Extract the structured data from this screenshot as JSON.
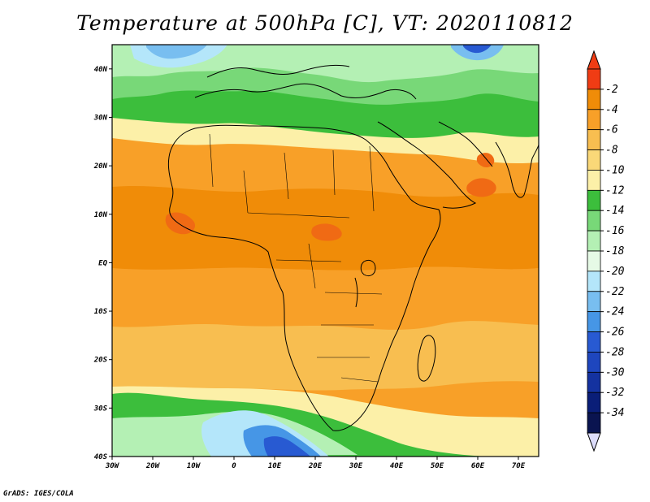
{
  "title": "Temperature at 500hPa [C], VT: 2020110812",
  "credit": "GrADS: IGES/COLA",
  "map": {
    "lon_range": [
      -30,
      75
    ],
    "lat_range": [
      -40,
      45
    ],
    "lat_ticks": [
      {
        "value": 40,
        "label": "40N"
      },
      {
        "value": 30,
        "label": "30N"
      },
      {
        "value": 20,
        "label": "20N"
      },
      {
        "value": 10,
        "label": "10N"
      },
      {
        "value": 0,
        "label": "EQ"
      },
      {
        "value": -10,
        "label": "10S"
      },
      {
        "value": -20,
        "label": "20S"
      },
      {
        "value": -30,
        "label": "30S"
      },
      {
        "value": -40,
        "label": "40S"
      }
    ],
    "lon_ticks": [
      {
        "value": -30,
        "label": "30W"
      },
      {
        "value": -20,
        "label": "20W"
      },
      {
        "value": -10,
        "label": "10W"
      },
      {
        "value": 0,
        "label": "0"
      },
      {
        "value": 10,
        "label": "10E"
      },
      {
        "value": 20,
        "label": "20E"
      },
      {
        "value": 30,
        "label": "30E"
      },
      {
        "value": 40,
        "label": "40E"
      },
      {
        "value": 50,
        "label": "50E"
      },
      {
        "value": 60,
        "label": "60E"
      },
      {
        "value": 70,
        "label": "70E"
      }
    ],
    "colors": {
      "t_m4": "#f08c08",
      "t_m6": "#f8a028",
      "t_m8": "#f8be50",
      "t_m10": "#fad878",
      "t_m12": "#fcf0a8",
      "t_m14": "#3cbe3c",
      "t_m16": "#78d878",
      "t_m18": "#b4f0b4",
      "t_m20": "#e6fae6",
      "t_m22": "#b4e6fa",
      "t_m24": "#78bef0",
      "t_m26": "#4696e6",
      "t_m28": "#285ad2",
      "ocean_hot": "#f06a14"
    }
  },
  "colorbar": {
    "levels": [
      "-2",
      "-4",
      "-6",
      "-8",
      "-10",
      "-12",
      "-14",
      "-16",
      "-18",
      "-20",
      "-22",
      "-24",
      "-26",
      "-28",
      "-30",
      "-32",
      "-34"
    ],
    "colors": [
      "#f03c14",
      "#f08c08",
      "#f8a028",
      "#f8be50",
      "#fad878",
      "#fcf0a8",
      "#3cbe3c",
      "#78d878",
      "#b4f0b4",
      "#e6fae6",
      "#b4e6fa",
      "#78bef0",
      "#4696e6",
      "#285ad2",
      "#1e46be",
      "#1432a0",
      "#0a1e78",
      "#0a1450"
    ],
    "top_triangle_color": "#f03c14",
    "bottom_triangle_color": "#dcdcfa"
  }
}
